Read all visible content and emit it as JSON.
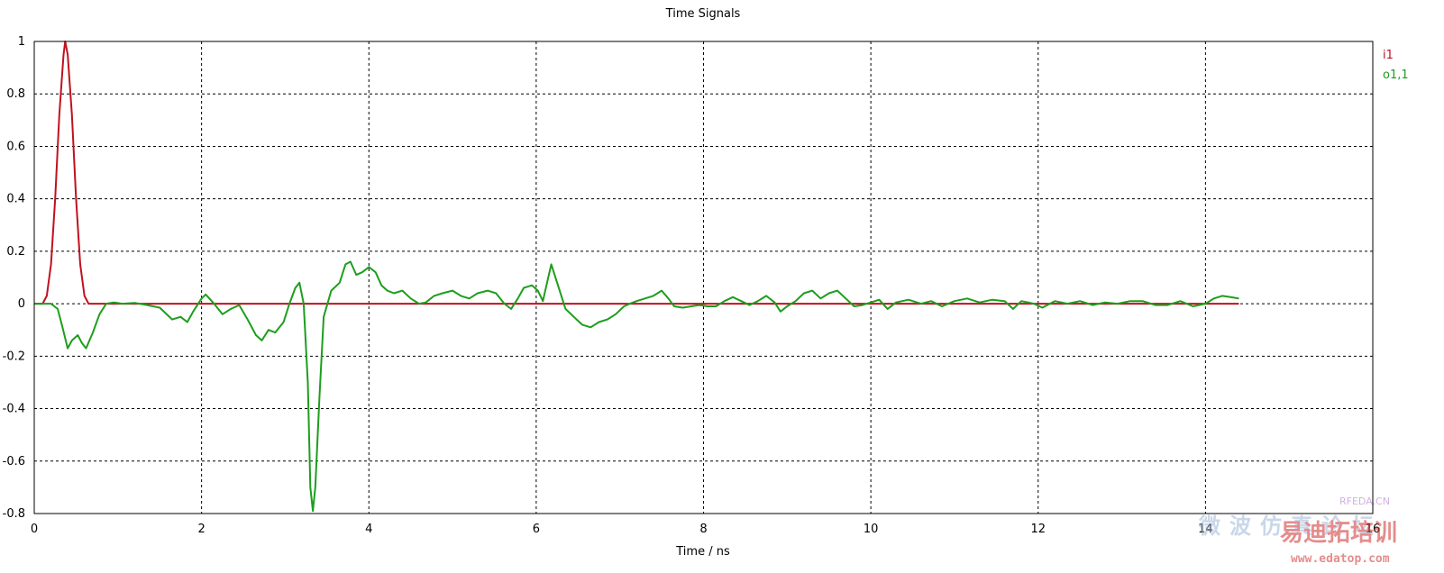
{
  "chart_data": {
    "type": "line",
    "title": "Time Signals",
    "xlabel": "Time / ns",
    "ylabel": "",
    "xlim": [
      0,
      16
    ],
    "ylim": [
      -0.8,
      1
    ],
    "xticks": [
      "0",
      "2",
      "4",
      "6",
      "8",
      "10",
      "12",
      "14",
      "16"
    ],
    "yticks": [
      "1",
      "0.8",
      "0.6",
      "0.4",
      "0.2",
      "0",
      "-0.2",
      "-0.4",
      "-0.6",
      "-0.8"
    ],
    "grid": true,
    "legend_position": "right",
    "series": [
      {
        "name": "i1",
        "color": "#c0111f",
        "points": [
          [
            0,
            0
          ],
          [
            0.1,
            0.0
          ],
          [
            0.15,
            0.03
          ],
          [
            0.2,
            0.15
          ],
          [
            0.25,
            0.4
          ],
          [
            0.3,
            0.72
          ],
          [
            0.35,
            0.95
          ],
          [
            0.37,
            1.0
          ],
          [
            0.4,
            0.95
          ],
          [
            0.45,
            0.72
          ],
          [
            0.5,
            0.4
          ],
          [
            0.55,
            0.15
          ],
          [
            0.6,
            0.03
          ],
          [
            0.65,
            0.0
          ],
          [
            14.4,
            0.0
          ]
        ]
      },
      {
        "name": "o1,1",
        "color": "#1d9e1d",
        "points": [
          [
            0,
            0
          ],
          [
            0.2,
            0.0
          ],
          [
            0.28,
            -0.02
          ],
          [
            0.33,
            -0.08
          ],
          [
            0.4,
            -0.17
          ],
          [
            0.45,
            -0.14
          ],
          [
            0.52,
            -0.12
          ],
          [
            0.57,
            -0.15
          ],
          [
            0.62,
            -0.17
          ],
          [
            0.7,
            -0.11
          ],
          [
            0.78,
            -0.04
          ],
          [
            0.86,
            0.0
          ],
          [
            0.95,
            0.005
          ],
          [
            1.05,
            0.0
          ],
          [
            1.2,
            0.003
          ],
          [
            1.35,
            -0.005
          ],
          [
            1.5,
            -0.015
          ],
          [
            1.65,
            -0.06
          ],
          [
            1.75,
            -0.05
          ],
          [
            1.83,
            -0.07
          ],
          [
            1.9,
            -0.03
          ],
          [
            2.0,
            0.02
          ],
          [
            2.05,
            0.035
          ],
          [
            2.15,
            0.0
          ],
          [
            2.25,
            -0.04
          ],
          [
            2.35,
            -0.02
          ],
          [
            2.45,
            -0.005
          ],
          [
            2.55,
            -0.06
          ],
          [
            2.65,
            -0.12
          ],
          [
            2.72,
            -0.14
          ],
          [
            2.8,
            -0.1
          ],
          [
            2.88,
            -0.11
          ],
          [
            2.98,
            -0.07
          ],
          [
            3.05,
            0.0
          ],
          [
            3.12,
            0.06
          ],
          [
            3.17,
            0.08
          ],
          [
            3.22,
            0.0
          ],
          [
            3.27,
            -0.3
          ],
          [
            3.3,
            -0.7
          ],
          [
            3.33,
            -0.79
          ],
          [
            3.36,
            -0.7
          ],
          [
            3.41,
            -0.35
          ],
          [
            3.46,
            -0.05
          ],
          [
            3.55,
            0.05
          ],
          [
            3.65,
            0.08
          ],
          [
            3.72,
            0.15
          ],
          [
            3.78,
            0.16
          ],
          [
            3.85,
            0.11
          ],
          [
            3.92,
            0.12
          ],
          [
            4.0,
            0.14
          ],
          [
            4.08,
            0.12
          ],
          [
            4.15,
            0.07
          ],
          [
            4.22,
            0.05
          ],
          [
            4.3,
            0.04
          ],
          [
            4.4,
            0.05
          ],
          [
            4.5,
            0.02
          ],
          [
            4.6,
            0.0
          ],
          [
            4.68,
            0.005
          ],
          [
            4.78,
            0.03
          ],
          [
            4.88,
            0.04
          ],
          [
            5.0,
            0.05
          ],
          [
            5.1,
            0.03
          ],
          [
            5.2,
            0.02
          ],
          [
            5.3,
            0.04
          ],
          [
            5.42,
            0.05
          ],
          [
            5.52,
            0.04
          ],
          [
            5.62,
            0.0
          ],
          [
            5.7,
            -0.02
          ],
          [
            5.78,
            0.02
          ],
          [
            5.85,
            0.06
          ],
          [
            5.95,
            0.07
          ],
          [
            6.02,
            0.05
          ],
          [
            6.08,
            0.01
          ],
          [
            6.13,
            0.08
          ],
          [
            6.18,
            0.15
          ],
          [
            6.25,
            0.08
          ],
          [
            6.35,
            -0.02
          ],
          [
            6.45,
            -0.05
          ],
          [
            6.55,
            -0.08
          ],
          [
            6.65,
            -0.09
          ],
          [
            6.75,
            -0.07
          ],
          [
            6.85,
            -0.06
          ],
          [
            6.95,
            -0.04
          ],
          [
            7.05,
            -0.01
          ],
          [
            7.12,
            0.0
          ],
          [
            7.2,
            0.01
          ],
          [
            7.3,
            0.02
          ],
          [
            7.4,
            0.03
          ],
          [
            7.5,
            0.05
          ],
          [
            7.58,
            0.02
          ],
          [
            7.65,
            -0.01
          ],
          [
            7.75,
            -0.015
          ],
          [
            7.85,
            -0.01
          ],
          [
            7.95,
            -0.005
          ],
          [
            8.05,
            -0.01
          ],
          [
            8.15,
            -0.01
          ],
          [
            8.25,
            0.01
          ],
          [
            8.35,
            0.025
          ],
          [
            8.45,
            0.01
          ],
          [
            8.55,
            -0.005
          ],
          [
            8.65,
            0.01
          ],
          [
            8.75,
            0.03
          ],
          [
            8.85,
            0.005
          ],
          [
            8.92,
            -0.03
          ],
          [
            9.0,
            -0.01
          ],
          [
            9.1,
            0.01
          ],
          [
            9.2,
            0.04
          ],
          [
            9.3,
            0.05
          ],
          [
            9.4,
            0.02
          ],
          [
            9.5,
            0.04
          ],
          [
            9.6,
            0.05
          ],
          [
            9.7,
            0.02
          ],
          [
            9.8,
            -0.01
          ],
          [
            9.9,
            -0.005
          ],
          [
            10.0,
            0.005
          ],
          [
            10.1,
            0.015
          ],
          [
            10.2,
            -0.02
          ],
          [
            10.3,
            0.005
          ],
          [
            10.45,
            0.015
          ],
          [
            10.6,
            0.0
          ],
          [
            10.72,
            0.01
          ],
          [
            10.85,
            -0.01
          ],
          [
            11.0,
            0.01
          ],
          [
            11.15,
            0.02
          ],
          [
            11.3,
            0.005
          ],
          [
            11.45,
            0.015
          ],
          [
            11.6,
            0.01
          ],
          [
            11.7,
            -0.02
          ],
          [
            11.8,
            0.01
          ],
          [
            11.95,
            0.0
          ],
          [
            12.05,
            -0.015
          ],
          [
            12.2,
            0.01
          ],
          [
            12.35,
            0.0
          ],
          [
            12.5,
            0.01
          ],
          [
            12.65,
            -0.005
          ],
          [
            12.8,
            0.005
          ],
          [
            12.95,
            0.0
          ],
          [
            13.1,
            0.01
          ],
          [
            13.25,
            0.01
          ],
          [
            13.4,
            -0.005
          ],
          [
            13.55,
            -0.005
          ],
          [
            13.7,
            0.01
          ],
          [
            13.85,
            -0.01
          ],
          [
            14.0,
            0.0
          ],
          [
            14.1,
            0.02
          ],
          [
            14.2,
            0.03
          ],
          [
            14.3,
            0.025
          ],
          [
            14.4,
            0.02
          ]
        ]
      }
    ]
  },
  "watermark": {
    "line1": "微波仿真论坛",
    "site": "RFEDA.CN",
    "brand": "易迪拓培训",
    "url": "www.edatop.com"
  }
}
